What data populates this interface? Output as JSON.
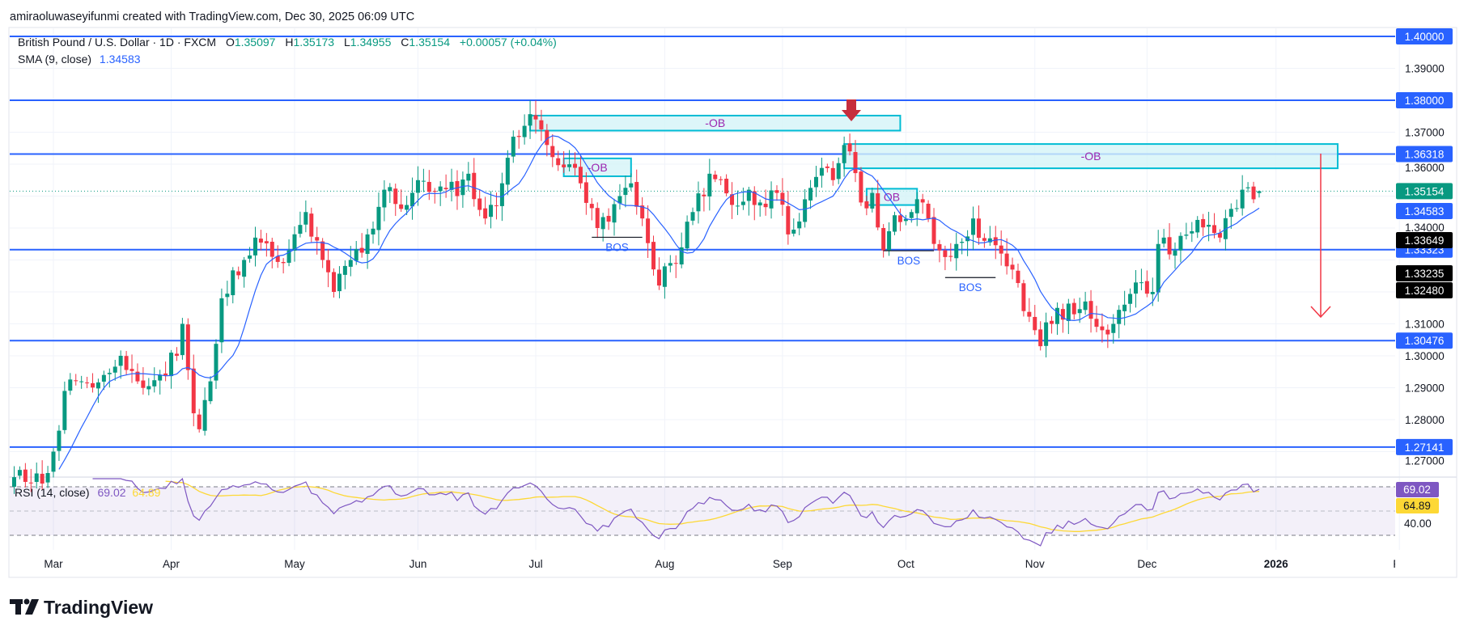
{
  "attribution": "amiraoluwaseyifunmi created with TradingView.com, Dec 30, 2025 06:09 UTC",
  "legend": {
    "symbol": "British Pound / U.S. Dollar · 1D · FXCM",
    "o_label": "O",
    "o": "1.35097",
    "h_label": "H",
    "h": "1.35173",
    "l_label": "L",
    "l": "1.34955",
    "c_label": "C",
    "c": "1.35154",
    "change": "+0.00057 (+0.04%)",
    "sma_label": "SMA (9, close)",
    "sma_value": "1.34583",
    "rsi_label": "RSI (14, close)",
    "rsi_value": "69.02",
    "rsi_ma_value": "64.89"
  },
  "price_axis": {
    "ticks": [
      "1.39000",
      "1.37000",
      "1.36000",
      "1.34000",
      "1.31000",
      "1.30000",
      "1.29000",
      "1.28000",
      "1.27000"
    ],
    "level_tags": [
      "1.40000",
      "1.38000",
      "1.36318",
      "1.33323",
      "1.30476",
      "1.27141"
    ],
    "last_price_tag": "1.35154",
    "sma_tag": "1.34583",
    "drawing_tags": [
      "1.33649",
      "1.33235",
      "1.32480"
    ]
  },
  "rsi_axis": {
    "rsi_tag": "69.02",
    "ma_tag": "64.89",
    "tick": "40.00"
  },
  "time_axis": [
    "Mar",
    "Apr",
    "May",
    "Jun",
    "Jul",
    "Aug",
    "Sep",
    "Oct",
    "Nov",
    "Dec",
    "2026",
    "Fe"
  ],
  "annotations": {
    "ob_labels": [
      "-OB",
      "-OB",
      "-OB",
      "OB"
    ],
    "bos_labels": [
      "BOS",
      "BOS",
      "BOS"
    ]
  },
  "logo": "TradingView",
  "colors": {
    "up": "#089981",
    "down": "#f23645",
    "level": "#2962ff",
    "sma": "#2962ff",
    "rsi": "#7e57c2",
    "rsi_ma": "#fdd835",
    "ob_border": "#00bcd4",
    "ob_fill": "#d4f4f8",
    "arrow": "#f23645"
  },
  "chart_data": {
    "type": "candlestick",
    "title": "British Pound / U.S. Dollar · 1D · FXCM",
    "ylim": [
      1.257,
      1.403
    ],
    "horizontal_levels": [
      1.4,
      1.38,
      1.36318,
      1.33323,
      1.30476,
      1.27141
    ],
    "last": {
      "open": 1.35097,
      "high": 1.35173,
      "low": 1.34955,
      "close": 1.35154
    },
    "sma9_last": 1.34583,
    "rsi14_last": 69.02,
    "rsi_ma_last": 64.89,
    "rsi_levels": [
      70,
      50,
      30
    ],
    "anchor_closes": [
      [
        "2025-02-20",
        1.262
      ],
      [
        "2025-02-27",
        1.26
      ],
      [
        "2025-03-03",
        1.27
      ],
      [
        "2025-03-05",
        1.289
      ],
      [
        "2025-03-10",
        1.292
      ],
      [
        "2025-03-14",
        1.294
      ],
      [
        "2025-03-19",
        1.3
      ],
      [
        "2025-03-24",
        1.292
      ],
      [
        "2025-03-28",
        1.294
      ],
      [
        "2025-04-02",
        1.3
      ],
      [
        "2025-04-03",
        1.31
      ],
      [
        "2025-04-07",
        1.282
      ],
      [
        "2025-04-08",
        1.277
      ],
      [
        "2025-04-10",
        1.292
      ],
      [
        "2025-04-14",
        1.318
      ],
      [
        "2025-04-18",
        1.33
      ],
      [
        "2025-04-22",
        1.337
      ],
      [
        "2025-04-25",
        1.331
      ],
      [
        "2025-04-30",
        1.333
      ],
      [
        "2025-05-05",
        1.345
      ],
      [
        "2025-05-08",
        1.33
      ],
      [
        "2025-05-12",
        1.32
      ],
      [
        "2025-05-15",
        1.33
      ],
      [
        "2025-05-20",
        1.338
      ],
      [
        "2025-05-23",
        1.352
      ],
      [
        "2025-05-28",
        1.346
      ],
      [
        "2025-06-02",
        1.355
      ],
      [
        "2025-06-06",
        1.353
      ],
      [
        "2025-06-11",
        1.35
      ],
      [
        "2025-06-13",
        1.357
      ],
      [
        "2025-06-18",
        1.343
      ],
      [
        "2025-06-20",
        1.347
      ],
      [
        "2025-06-24",
        1.362
      ],
      [
        "2025-06-27",
        1.372
      ],
      [
        "2025-07-01",
        1.374
      ],
      [
        "2025-07-03",
        1.366
      ],
      [
        "2025-07-08",
        1.359
      ],
      [
        "2025-07-11",
        1.354
      ],
      [
        "2025-07-16",
        1.34
      ],
      [
        "2025-07-18",
        1.342
      ],
      [
        "2025-07-22",
        1.35
      ],
      [
        "2025-07-24",
        1.354
      ],
      [
        "2025-07-28",
        1.343
      ],
      [
        "2025-07-31",
        1.322
      ],
      [
        "2025-08-01",
        1.328
      ],
      [
        "2025-08-05",
        1.329
      ],
      [
        "2025-08-08",
        1.345
      ],
      [
        "2025-08-13",
        1.357
      ],
      [
        "2025-08-15",
        1.355
      ],
      [
        "2025-08-20",
        1.347
      ],
      [
        "2025-08-22",
        1.352
      ],
      [
        "2025-08-26",
        1.348
      ],
      [
        "2025-08-29",
        1.351
      ],
      [
        "2025-09-02",
        1.338
      ],
      [
        "2025-09-05",
        1.349
      ],
      [
        "2025-09-09",
        1.356
      ],
      [
        "2025-09-12",
        1.355
      ],
      [
        "2025-09-16",
        1.366
      ],
      [
        "2025-09-17",
        1.364
      ],
      [
        "2025-09-19",
        1.348
      ],
      [
        "2025-09-23",
        1.351
      ],
      [
        "2025-09-25",
        1.333
      ],
      [
        "2025-09-29",
        1.344
      ],
      [
        "2025-10-02",
        1.345
      ],
      [
        "2025-10-06",
        1.348
      ],
      [
        "2025-10-09",
        1.333
      ],
      [
        "2025-10-14",
        1.335
      ],
      [
        "2025-10-17",
        1.343
      ],
      [
        "2025-10-21",
        1.336
      ],
      [
        "2025-10-24",
        1.332
      ],
      [
        "2025-10-28",
        1.327
      ],
      [
        "2025-10-30",
        1.314
      ],
      [
        "2025-11-04",
        1.303
      ],
      [
        "2025-11-07",
        1.315
      ],
      [
        "2025-11-12",
        1.313
      ],
      [
        "2025-11-14",
        1.317
      ],
      [
        "2025-11-19",
        1.308
      ],
      [
        "2025-11-21",
        1.31
      ],
      [
        "2025-11-25",
        1.316
      ],
      [
        "2025-11-28",
        1.323
      ],
      [
        "2025-12-02",
        1.32
      ],
      [
        "2025-12-03",
        1.335
      ],
      [
        "2025-12-08",
        1.333
      ],
      [
        "2025-12-11",
        1.339
      ],
      [
        "2025-12-16",
        1.341
      ],
      [
        "2025-12-18",
        1.337
      ],
      [
        "2025-12-22",
        1.346
      ],
      [
        "2025-12-24",
        1.352
      ],
      [
        "2025-12-26",
        1.349
      ],
      [
        "2025-12-29",
        1.35154
      ]
    ],
    "order_blocks": [
      {
        "label": "-OB",
        "top": 1.3752,
        "bottom": 1.3705,
        "from": "2025-06-30",
        "to": "2025-09-30"
      },
      {
        "label": "-OB",
        "top": 1.3618,
        "bottom": 1.3562,
        "from": "2025-07-08",
        "to": "2025-07-24"
      },
      {
        "label": "-OB",
        "top": 1.3663,
        "bottom": 1.3587,
        "from": "2025-09-16",
        "to": "2026-01-16"
      },
      {
        "label": "OB",
        "top": 1.3523,
        "bottom": 1.3472,
        "from": "2025-09-22",
        "to": "2025-10-03"
      }
    ],
    "bos": [
      {
        "label": "BOS",
        "price": 1.3371,
        "from": "2025-07-15",
        "to": "2025-07-28"
      },
      {
        "label": "BOS",
        "price": 1.3329,
        "from": "2025-09-25",
        "to": "2025-10-08"
      },
      {
        "label": "BOS",
        "price": 1.3245,
        "from": "2025-10-10",
        "to": "2025-10-23"
      }
    ],
    "projection_arrow": {
      "from_price": 1.3631,
      "to_price": 1.3114
    }
  }
}
